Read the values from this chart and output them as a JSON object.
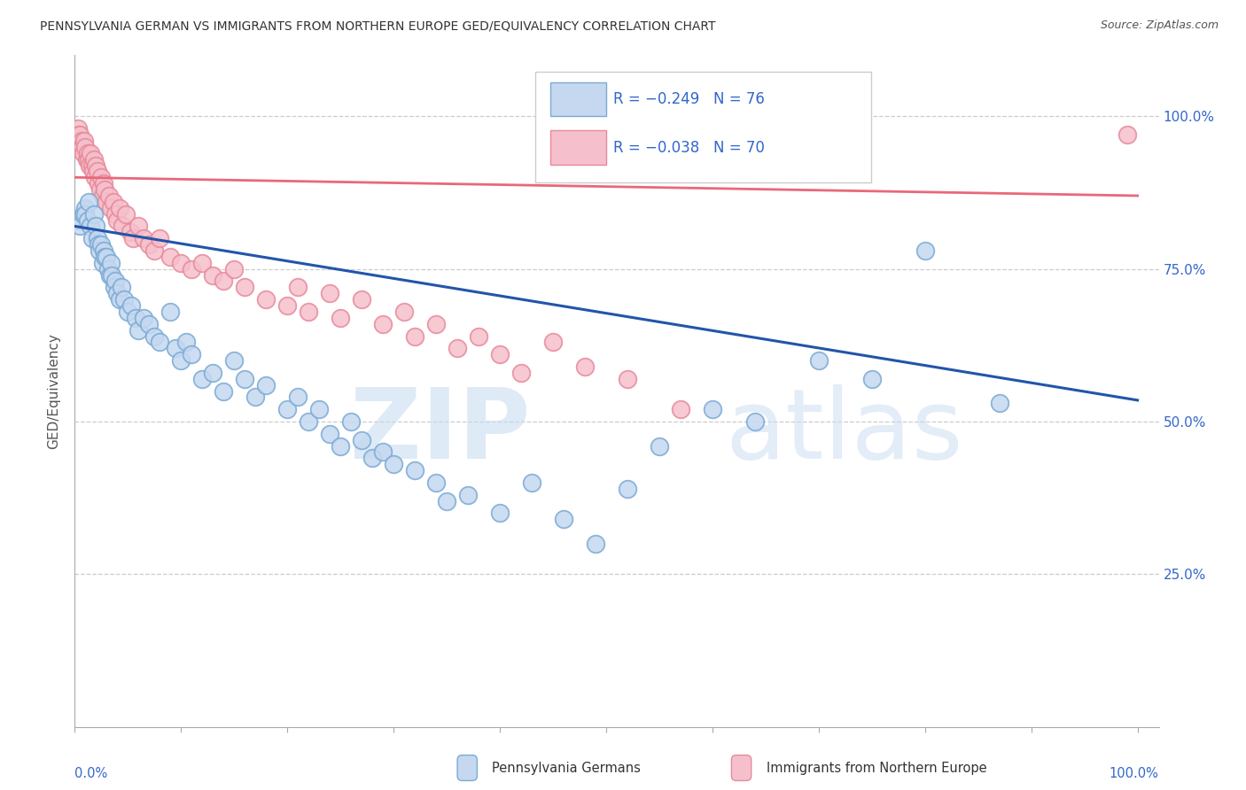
{
  "title": "PENNSYLVANIA GERMAN VS IMMIGRANTS FROM NORTHERN EUROPE GED/EQUIVALENCY CORRELATION CHART",
  "source": "Source: ZipAtlas.com",
  "ylabel": "GED/Equivalency",
  "legend_blue_r": "R = −0.249",
  "legend_blue_n": "N = 76",
  "legend_pink_r": "R = −0.038",
  "legend_pink_n": "N = 70",
  "legend_label_blue": "Pennsylvania Germans",
  "legend_label_pink": "Immigrants from Northern Europe",
  "blue_scatter_color_face": "#C5D8F0",
  "blue_scatter_color_edge": "#7BAAD4",
  "pink_scatter_color_face": "#F5C0CC",
  "pink_scatter_color_edge": "#E8899A",
  "trend_blue_color": "#2255AA",
  "trend_pink_color": "#E8687A",
  "ytick_labels": [
    "100.0%",
    "75.0%",
    "50.0%",
    "25.0%"
  ],
  "ytick_values": [
    1.0,
    0.75,
    0.5,
    0.25
  ],
  "blue_x": [
    0.005,
    0.005,
    0.008,
    0.01,
    0.01,
    0.012,
    0.013,
    0.015,
    0.016,
    0.018,
    0.02,
    0.021,
    0.022,
    0.023,
    0.025,
    0.026,
    0.027,
    0.028,
    0.03,
    0.031,
    0.033,
    0.034,
    0.035,
    0.037,
    0.038,
    0.04,
    0.042,
    0.044,
    0.046,
    0.05,
    0.053,
    0.057,
    0.06,
    0.065,
    0.07,
    0.075,
    0.08,
    0.09,
    0.095,
    0.1,
    0.105,
    0.11,
    0.12,
    0.13,
    0.14,
    0.15,
    0.16,
    0.17,
    0.18,
    0.2,
    0.21,
    0.22,
    0.23,
    0.24,
    0.25,
    0.26,
    0.27,
    0.28,
    0.29,
    0.3,
    0.32,
    0.34,
    0.35,
    0.37,
    0.4,
    0.43,
    0.46,
    0.49,
    0.52,
    0.55,
    0.6,
    0.64,
    0.7,
    0.75,
    0.8,
    0.87
  ],
  "blue_y": [
    0.83,
    0.82,
    0.84,
    0.85,
    0.84,
    0.83,
    0.86,
    0.82,
    0.8,
    0.84,
    0.82,
    0.8,
    0.79,
    0.78,
    0.79,
    0.76,
    0.78,
    0.77,
    0.77,
    0.75,
    0.74,
    0.76,
    0.74,
    0.72,
    0.73,
    0.71,
    0.7,
    0.72,
    0.7,
    0.68,
    0.69,
    0.67,
    0.65,
    0.67,
    0.66,
    0.64,
    0.63,
    0.68,
    0.62,
    0.6,
    0.63,
    0.61,
    0.57,
    0.58,
    0.55,
    0.6,
    0.57,
    0.54,
    0.56,
    0.52,
    0.54,
    0.5,
    0.52,
    0.48,
    0.46,
    0.5,
    0.47,
    0.44,
    0.45,
    0.43,
    0.42,
    0.4,
    0.37,
    0.38,
    0.35,
    0.4,
    0.34,
    0.3,
    0.39,
    0.46,
    0.52,
    0.5,
    0.6,
    0.57,
    0.78,
    0.53
  ],
  "pink_x": [
    0.003,
    0.004,
    0.005,
    0.006,
    0.006,
    0.007,
    0.008,
    0.009,
    0.01,
    0.011,
    0.012,
    0.013,
    0.014,
    0.015,
    0.016,
    0.017,
    0.018,
    0.019,
    0.02,
    0.021,
    0.022,
    0.024,
    0.025,
    0.026,
    0.027,
    0.028,
    0.03,
    0.032,
    0.034,
    0.036,
    0.038,
    0.04,
    0.042,
    0.045,
    0.048,
    0.052,
    0.055,
    0.06,
    0.065,
    0.07,
    0.075,
    0.08,
    0.09,
    0.1,
    0.11,
    0.12,
    0.13,
    0.14,
    0.15,
    0.16,
    0.18,
    0.2,
    0.21,
    0.22,
    0.24,
    0.25,
    0.27,
    0.29,
    0.31,
    0.32,
    0.34,
    0.36,
    0.38,
    0.4,
    0.42,
    0.45,
    0.48,
    0.52,
    0.57,
    0.99
  ],
  "pink_y": [
    0.98,
    0.97,
    0.97,
    0.96,
    0.95,
    0.95,
    0.94,
    0.96,
    0.95,
    0.93,
    0.94,
    0.93,
    0.92,
    0.94,
    0.92,
    0.91,
    0.93,
    0.9,
    0.92,
    0.91,
    0.89,
    0.88,
    0.9,
    0.87,
    0.89,
    0.88,
    0.86,
    0.87,
    0.85,
    0.86,
    0.84,
    0.83,
    0.85,
    0.82,
    0.84,
    0.81,
    0.8,
    0.82,
    0.8,
    0.79,
    0.78,
    0.8,
    0.77,
    0.76,
    0.75,
    0.76,
    0.74,
    0.73,
    0.75,
    0.72,
    0.7,
    0.69,
    0.72,
    0.68,
    0.71,
    0.67,
    0.7,
    0.66,
    0.68,
    0.64,
    0.66,
    0.62,
    0.64,
    0.61,
    0.58,
    0.63,
    0.59,
    0.57,
    0.52,
    0.97
  ],
  "blue_trend_y_start": 0.82,
  "blue_trend_y_end": 0.535,
  "pink_trend_y_start": 0.9,
  "pink_trend_y_end": 0.87,
  "xlim": [
    0.0,
    1.02
  ],
  "ylim": [
    0.0,
    1.1
  ]
}
